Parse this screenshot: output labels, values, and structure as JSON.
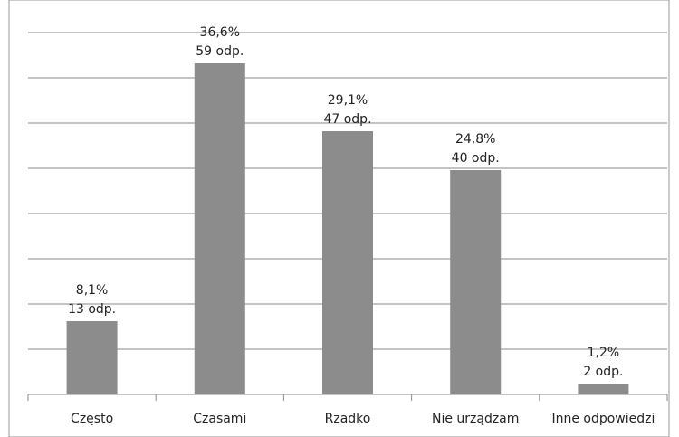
{
  "chart_data": {
    "type": "bar",
    "categories": [
      "Często",
      "Czasami",
      "Rzadko",
      "Nie urządzam",
      "Inne odpowiedzi"
    ],
    "values": [
      8.1,
      36.6,
      29.1,
      24.8,
      1.2
    ],
    "value_labels": [
      "8,1%",
      "36,6%",
      "29,1%",
      "24,8%",
      "1,2%"
    ],
    "count_labels": [
      "13 odp.",
      "59 odp.",
      "47 odp.",
      "40 odp.",
      "2 odp."
    ],
    "color": "#8c8c8c",
    "ylim": [
      0,
      40
    ],
    "yticks": [
      0,
      5,
      10,
      15,
      20,
      25,
      30,
      35,
      40
    ],
    "grid": true
  }
}
